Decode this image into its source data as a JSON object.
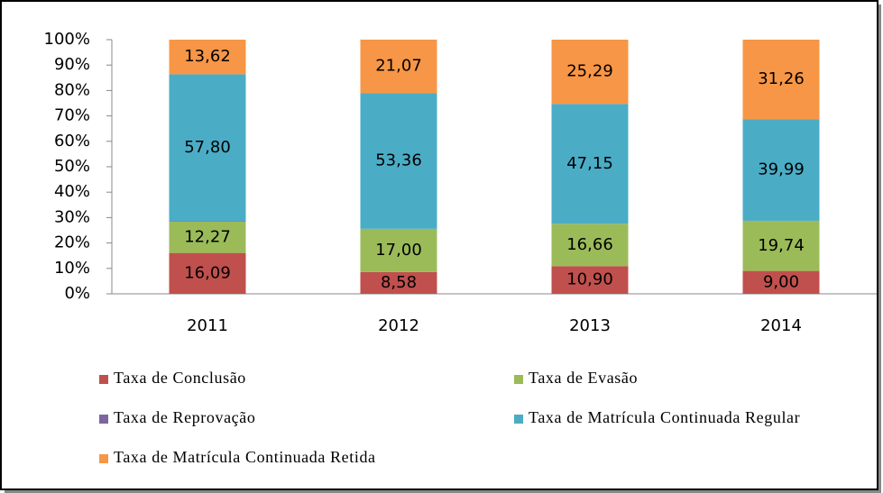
{
  "chart_data": {
    "type": "stacked_bar",
    "categories": [
      "2011",
      "2012",
      "2013",
      "2014"
    ],
    "series": [
      {
        "name": "Taxa de Conclusão",
        "color": "#c0504d",
        "values": [
          16.09,
          8.58,
          10.9,
          9.0
        ],
        "value_labels": [
          "16,09",
          "8,58",
          "10,90",
          "9,00"
        ]
      },
      {
        "name": "Taxa de Evasão",
        "color": "#9bbb59",
        "values": [
          12.27,
          17.0,
          16.66,
          19.74
        ],
        "value_labels": [
          "12,27",
          "17,00",
          "16,66",
          "19,74"
        ]
      },
      {
        "name": "Taxa de Reprovação",
        "color": "#8064a2",
        "values": [
          0.22,
          0,
          0,
          0.01
        ]
      },
      {
        "name": "Taxa de Matrícula Continuada Regular",
        "color": "#4bacc6",
        "values": [
          57.8,
          53.36,
          47.15,
          39.99
        ],
        "value_labels": [
          "57,80",
          "53,36",
          "47,15",
          "39,99"
        ]
      },
      {
        "name": "Taxa de Matrícula Continuada Retida",
        "color": "#f79646",
        "values": [
          13.62,
          21.07,
          25.29,
          31.26
        ],
        "value_labels": [
          "13,62",
          "21,07",
          "25,29",
          "31,26"
        ]
      }
    ],
    "ylim": [
      0,
      100
    ],
    "yticks": [
      {
        "value": 0,
        "label": "0%"
      },
      {
        "value": 10,
        "label": "10%"
      },
      {
        "value": 20,
        "label": "20%"
      },
      {
        "value": 30,
        "label": "30%"
      },
      {
        "value": 40,
        "label": "40%"
      },
      {
        "value": 50,
        "label": "50%"
      },
      {
        "value": 60,
        "label": "60%"
      },
      {
        "value": 70,
        "label": "70%"
      },
      {
        "value": 80,
        "label": "80%"
      },
      {
        "value": 90,
        "label": "90%"
      },
      {
        "value": 100,
        "label": "100%"
      }
    ]
  }
}
